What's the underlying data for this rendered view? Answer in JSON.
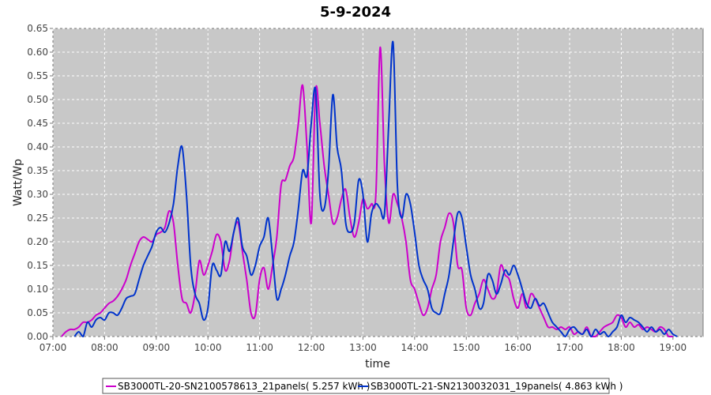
{
  "chart_data": {
    "type": "line",
    "title": "5-9-2024",
    "xlabel": "time",
    "ylabel": "Watt/Wp",
    "xlim": [
      "07:00",
      "19:35"
    ],
    "ylim": [
      0,
      0.65
    ],
    "x_ticks": [
      "07:00",
      "08:00",
      "09:00",
      "10:00",
      "11:00",
      "12:00",
      "13:00",
      "14:00",
      "15:00",
      "16:00",
      "17:00",
      "18:00",
      "19:00"
    ],
    "y_ticks": [
      "0.00",
      "0.05",
      "0.10",
      "0.15",
      "0.20",
      "0.25",
      "0.30",
      "0.35",
      "0.40",
      "0.45",
      "0.50",
      "0.55",
      "0.60",
      "0.65"
    ],
    "grid": true,
    "legend_position": "bottom",
    "plot_background": "#c8c8c8",
    "series": [
      {
        "name": "SB3000TL-20-SN2100578613_21panels( 5.257 kWh )",
        "color": "#cc00cc",
        "points": [
          [
            "07:10",
            0.0
          ],
          [
            "07:15",
            0.01
          ],
          [
            "07:20",
            0.015
          ],
          [
            "07:25",
            0.015
          ],
          [
            "07:30",
            0.02
          ],
          [
            "07:35",
            0.03
          ],
          [
            "07:40",
            0.03
          ],
          [
            "07:45",
            0.035
          ],
          [
            "07:50",
            0.045
          ],
          [
            "07:55",
            0.05
          ],
          [
            "08:00",
            0.06
          ],
          [
            "08:05",
            0.07
          ],
          [
            "08:10",
            0.075
          ],
          [
            "08:15",
            0.085
          ],
          [
            "08:20",
            0.1
          ],
          [
            "08:25",
            0.12
          ],
          [
            "08:30",
            0.15
          ],
          [
            "08:35",
            0.175
          ],
          [
            "08:40",
            0.2
          ],
          [
            "08:45",
            0.21
          ],
          [
            "08:50",
            0.205
          ],
          [
            "08:55",
            0.2
          ],
          [
            "09:00",
            0.215
          ],
          [
            "09:05",
            0.22
          ],
          [
            "09:10",
            0.23
          ],
          [
            "09:15",
            0.265
          ],
          [
            "09:20",
            0.24
          ],
          [
            "09:25",
            0.15
          ],
          [
            "09:30",
            0.08
          ],
          [
            "09:35",
            0.07
          ],
          [
            "09:40",
            0.05
          ],
          [
            "09:45",
            0.09
          ],
          [
            "09:50",
            0.16
          ],
          [
            "09:55",
            0.13
          ],
          [
            "10:00",
            0.15
          ],
          [
            "10:05",
            0.18
          ],
          [
            "10:10",
            0.215
          ],
          [
            "10:15",
            0.2
          ],
          [
            "10:20",
            0.14
          ],
          [
            "10:25",
            0.16
          ],
          [
            "10:30",
            0.22
          ],
          [
            "10:35",
            0.24
          ],
          [
            "10:40",
            0.18
          ],
          [
            "10:45",
            0.12
          ],
          [
            "10:50",
            0.05
          ],
          [
            "10:55",
            0.045
          ],
          [
            "11:00",
            0.12
          ],
          [
            "11:05",
            0.145
          ],
          [
            "11:10",
            0.1
          ],
          [
            "11:15",
            0.15
          ],
          [
            "11:20",
            0.21
          ],
          [
            "11:25",
            0.32
          ],
          [
            "11:30",
            0.33
          ],
          [
            "11:35",
            0.36
          ],
          [
            "11:40",
            0.38
          ],
          [
            "11:45",
            0.45
          ],
          [
            "11:50",
            0.53
          ],
          [
            "11:55",
            0.4
          ],
          [
            "12:00",
            0.24
          ],
          [
            "12:05",
            0.52
          ],
          [
            "12:10",
            0.45
          ],
          [
            "12:15",
            0.36
          ],
          [
            "12:20",
            0.3
          ],
          [
            "12:25",
            0.24
          ],
          [
            "12:30",
            0.25
          ],
          [
            "12:35",
            0.29
          ],
          [
            "12:40",
            0.31
          ],
          [
            "12:45",
            0.25
          ],
          [
            "12:50",
            0.21
          ],
          [
            "12:55",
            0.24
          ],
          [
            "13:00",
            0.29
          ],
          [
            "13:05",
            0.27
          ],
          [
            "13:10",
            0.28
          ],
          [
            "13:15",
            0.3
          ],
          [
            "13:20",
            0.61
          ],
          [
            "13:25",
            0.36
          ],
          [
            "13:30",
            0.24
          ],
          [
            "13:35",
            0.3
          ],
          [
            "13:40",
            0.28
          ],
          [
            "13:45",
            0.25
          ],
          [
            "13:50",
            0.2
          ],
          [
            "13:55",
            0.12
          ],
          [
            "14:00",
            0.1
          ],
          [
            "14:05",
            0.07
          ],
          [
            "14:10",
            0.045
          ],
          [
            "14:15",
            0.06
          ],
          [
            "14:20",
            0.1
          ],
          [
            "14:25",
            0.13
          ],
          [
            "14:30",
            0.2
          ],
          [
            "14:35",
            0.23
          ],
          [
            "14:40",
            0.26
          ],
          [
            "14:45",
            0.24
          ],
          [
            "14:50",
            0.15
          ],
          [
            "14:55",
            0.14
          ],
          [
            "15:00",
            0.06
          ],
          [
            "15:05",
            0.045
          ],
          [
            "15:10",
            0.07
          ],
          [
            "15:15",
            0.09
          ],
          [
            "15:20",
            0.12
          ],
          [
            "15:25",
            0.1
          ],
          [
            "15:30",
            0.08
          ],
          [
            "15:35",
            0.09
          ],
          [
            "15:40",
            0.15
          ],
          [
            "15:45",
            0.13
          ],
          [
            "15:50",
            0.12
          ],
          [
            "15:55",
            0.08
          ],
          [
            "16:00",
            0.06
          ],
          [
            "16:05",
            0.09
          ],
          [
            "16:10",
            0.06
          ],
          [
            "16:15",
            0.09
          ],
          [
            "16:20",
            0.08
          ],
          [
            "16:25",
            0.06
          ],
          [
            "16:30",
            0.04
          ],
          [
            "16:35",
            0.02
          ],
          [
            "16:40",
            0.02
          ],
          [
            "16:45",
            0.015
          ],
          [
            "16:50",
            0.02
          ],
          [
            "16:55",
            0.015
          ],
          [
            "17:00",
            0.02
          ],
          [
            "17:05",
            0.005
          ],
          [
            "17:10",
            0.01
          ],
          [
            "17:15",
            0.005
          ],
          [
            "17:20",
            0.02
          ],
          [
            "17:25",
            0.0
          ],
          [
            "17:30",
            0.0
          ],
          [
            "17:35",
            0.01
          ],
          [
            "17:40",
            0.02
          ],
          [
            "17:45",
            0.025
          ],
          [
            "17:50",
            0.03
          ],
          [
            "17:55",
            0.045
          ],
          [
            "18:00",
            0.04
          ],
          [
            "18:05",
            0.02
          ],
          [
            "18:10",
            0.03
          ],
          [
            "18:15",
            0.02
          ],
          [
            "18:20",
            0.025
          ],
          [
            "18:25",
            0.015
          ],
          [
            "18:30",
            0.02
          ],
          [
            "18:35",
            0.015
          ],
          [
            "18:40",
            0.01
          ],
          [
            "18:45",
            0.02
          ],
          [
            "18:50",
            0.015
          ],
          [
            "18:55",
            0.0
          ],
          [
            "19:00",
            0.0
          ]
        ]
      },
      {
        "name": "SB3000TL-21-SN2130032031_19panels( 4.863 kWh )",
        "color": "#0033cc",
        "points": [
          [
            "07:25",
            0.0
          ],
          [
            "07:30",
            0.01
          ],
          [
            "07:35",
            0.0
          ],
          [
            "07:40",
            0.03
          ],
          [
            "07:45",
            0.02
          ],
          [
            "07:50",
            0.035
          ],
          [
            "07:55",
            0.04
          ],
          [
            "08:00",
            0.035
          ],
          [
            "08:05",
            0.05
          ],
          [
            "08:10",
            0.05
          ],
          [
            "08:15",
            0.045
          ],
          [
            "08:20",
            0.06
          ],
          [
            "08:25",
            0.08
          ],
          [
            "08:30",
            0.085
          ],
          [
            "08:35",
            0.09
          ],
          [
            "08:40",
            0.12
          ],
          [
            "08:45",
            0.15
          ],
          [
            "08:50",
            0.17
          ],
          [
            "08:55",
            0.19
          ],
          [
            "09:00",
            0.22
          ],
          [
            "09:05",
            0.23
          ],
          [
            "09:10",
            0.22
          ],
          [
            "09:15",
            0.24
          ],
          [
            "09:20",
            0.28
          ],
          [
            "09:25",
            0.36
          ],
          [
            "09:30",
            0.4
          ],
          [
            "09:35",
            0.3
          ],
          [
            "09:40",
            0.15
          ],
          [
            "09:45",
            0.09
          ],
          [
            "09:50",
            0.07
          ],
          [
            "09:55",
            0.035
          ],
          [
            "10:00",
            0.06
          ],
          [
            "10:05",
            0.15
          ],
          [
            "10:10",
            0.14
          ],
          [
            "10:15",
            0.13
          ],
          [
            "10:20",
            0.2
          ],
          [
            "10:25",
            0.18
          ],
          [
            "10:30",
            0.22
          ],
          [
            "10:35",
            0.25
          ],
          [
            "10:40",
            0.19
          ],
          [
            "10:45",
            0.17
          ],
          [
            "10:50",
            0.13
          ],
          [
            "10:55",
            0.15
          ],
          [
            "11:00",
            0.19
          ],
          [
            "11:05",
            0.21
          ],
          [
            "11:10",
            0.25
          ],
          [
            "11:15",
            0.17
          ],
          [
            "11:20",
            0.08
          ],
          [
            "11:25",
            0.1
          ],
          [
            "11:30",
            0.13
          ],
          [
            "11:35",
            0.17
          ],
          [
            "11:40",
            0.2
          ],
          [
            "11:45",
            0.27
          ],
          [
            "11:50",
            0.35
          ],
          [
            "11:55",
            0.34
          ],
          [
            "12:00",
            0.45
          ],
          [
            "12:05",
            0.52
          ],
          [
            "12:10",
            0.3
          ],
          [
            "12:15",
            0.27
          ],
          [
            "12:20",
            0.35
          ],
          [
            "12:25",
            0.51
          ],
          [
            "12:30",
            0.4
          ],
          [
            "12:35",
            0.35
          ],
          [
            "12:40",
            0.24
          ],
          [
            "12:45",
            0.22
          ],
          [
            "12:50",
            0.24
          ],
          [
            "12:55",
            0.33
          ],
          [
            "13:00",
            0.3
          ],
          [
            "13:05",
            0.2
          ],
          [
            "13:10",
            0.26
          ],
          [
            "13:15",
            0.28
          ],
          [
            "13:20",
            0.27
          ],
          [
            "13:25",
            0.26
          ],
          [
            "13:30",
            0.45
          ],
          [
            "13:35",
            0.62
          ],
          [
            "13:40",
            0.32
          ],
          [
            "13:45",
            0.25
          ],
          [
            "13:50",
            0.3
          ],
          [
            "13:55",
            0.28
          ],
          [
            "14:00",
            0.22
          ],
          [
            "14:05",
            0.15
          ],
          [
            "14:10",
            0.12
          ],
          [
            "14:15",
            0.1
          ],
          [
            "14:20",
            0.06
          ],
          [
            "14:25",
            0.05
          ],
          [
            "14:30",
            0.05
          ],
          [
            "14:35",
            0.09
          ],
          [
            "14:40",
            0.13
          ],
          [
            "14:45",
            0.2
          ],
          [
            "14:50",
            0.26
          ],
          [
            "14:55",
            0.25
          ],
          [
            "15:00",
            0.19
          ],
          [
            "15:05",
            0.13
          ],
          [
            "15:10",
            0.1
          ],
          [
            "15:15",
            0.06
          ],
          [
            "15:20",
            0.07
          ],
          [
            "15:25",
            0.13
          ],
          [
            "15:30",
            0.12
          ],
          [
            "15:35",
            0.09
          ],
          [
            "15:40",
            0.11
          ],
          [
            "15:45",
            0.14
          ],
          [
            "15:50",
            0.13
          ],
          [
            "15:55",
            0.15
          ],
          [
            "16:00",
            0.13
          ],
          [
            "16:05",
            0.1
          ],
          [
            "16:10",
            0.07
          ],
          [
            "16:15",
            0.06
          ],
          [
            "16:20",
            0.08
          ],
          [
            "16:25",
            0.065
          ],
          [
            "16:30",
            0.07
          ],
          [
            "16:35",
            0.05
          ],
          [
            "16:40",
            0.03
          ],
          [
            "16:45",
            0.02
          ],
          [
            "16:50",
            0.01
          ],
          [
            "16:55",
            0.0
          ],
          [
            "17:00",
            0.015
          ],
          [
            "17:05",
            0.02
          ],
          [
            "17:10",
            0.01
          ],
          [
            "17:15",
            0.005
          ],
          [
            "17:20",
            0.015
          ],
          [
            "17:25",
            0.0
          ],
          [
            "17:30",
            0.015
          ],
          [
            "17:35",
            0.005
          ],
          [
            "17:40",
            0.01
          ],
          [
            "17:45",
            0.0
          ],
          [
            "17:50",
            0.01
          ],
          [
            "17:55",
            0.02
          ],
          [
            "18:00",
            0.045
          ],
          [
            "18:05",
            0.03
          ],
          [
            "18:10",
            0.04
          ],
          [
            "18:15",
            0.035
          ],
          [
            "18:20",
            0.03
          ],
          [
            "18:25",
            0.02
          ],
          [
            "18:30",
            0.01
          ],
          [
            "18:35",
            0.02
          ],
          [
            "18:40",
            0.01
          ],
          [
            "18:45",
            0.015
          ],
          [
            "18:50",
            0.005
          ],
          [
            "18:55",
            0.015
          ],
          [
            "19:00",
            0.005
          ],
          [
            "19:05",
            0.0
          ]
        ]
      }
    ]
  }
}
